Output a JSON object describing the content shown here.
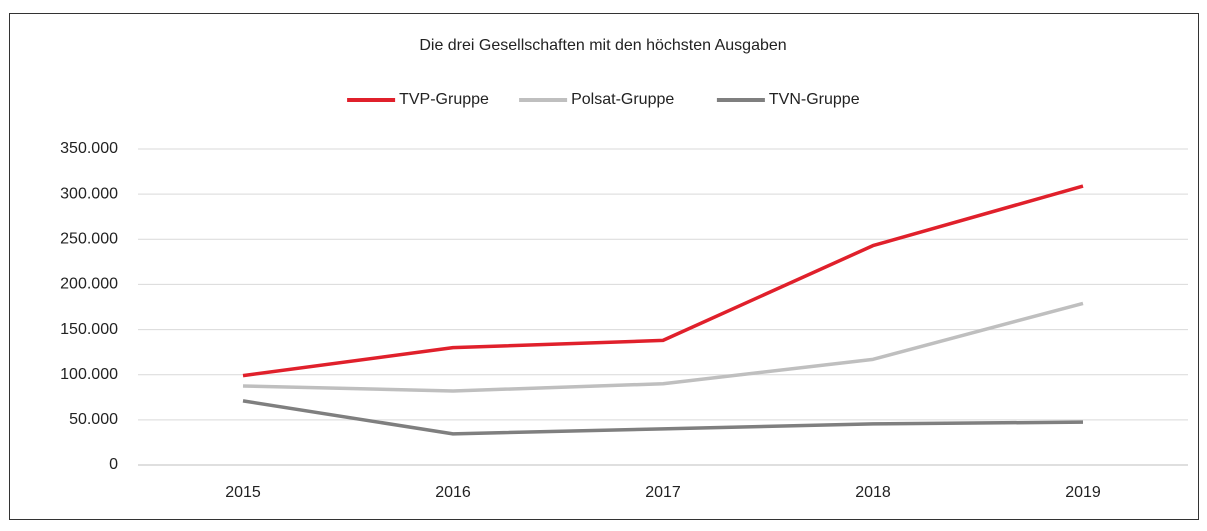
{
  "chart_data": {
    "type": "line",
    "title": "Die drei Gesellschaften mit den höchsten Ausgaben",
    "categories": [
      "2015",
      "2016",
      "2017",
      "2018",
      "2019"
    ],
    "series": [
      {
        "name": "TVP-Gruppe",
        "color": "#e0202b",
        "values": [
          99000,
          130000,
          138000,
          243000,
          309000
        ]
      },
      {
        "name": "Polsat-Gruppe",
        "color": "#bfbfbf",
        "values": [
          87500,
          82000,
          90000,
          117000,
          179000
        ]
      },
      {
        "name": "TVN-Gruppe",
        "color": "#7f7f7f",
        "values": [
          71000,
          34500,
          40000,
          45500,
          47500
        ]
      }
    ],
    "ylim": [
      0,
      350000
    ],
    "yticks": [
      0,
      {
        "value": 50000,
        "label": "50.000"
      },
      {
        "value": 100000,
        "label": "100.000"
      },
      {
        "value": 150000,
        "label": "150.000"
      },
      {
        "value": 200000,
        "label": "200.000"
      },
      {
        "value": 250000,
        "label": "250.000"
      },
      {
        "value": 300000,
        "label": "300.000"
      },
      {
        "value": 350000,
        "label": "350.000"
      }
    ],
    "grid": true,
    "legend": "top"
  }
}
